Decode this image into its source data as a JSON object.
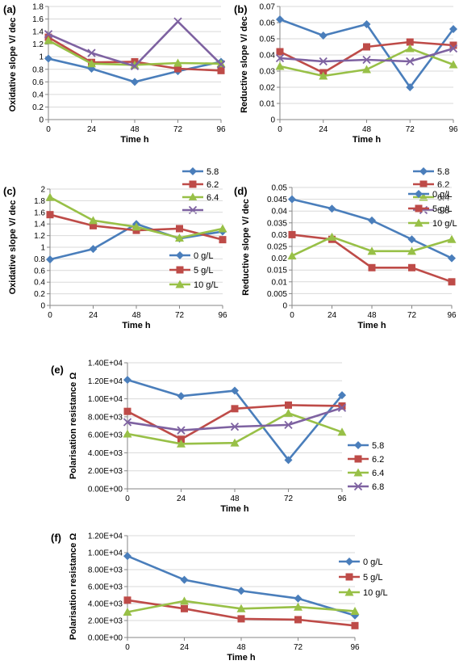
{
  "colors": {
    "blue": "#4a7ebb",
    "red": "#be4b48",
    "green": "#98c047",
    "purple": "#7e62a1",
    "grid": "#d9d9d9",
    "axis": "#868686"
  },
  "chart_data": [
    {
      "id": "a",
      "panel_label": "(a)",
      "type": "line",
      "ylabel": "Oxidative slope V/ dec",
      "xlabel": "Time h",
      "ylim": [
        0,
        1.8
      ],
      "yticks": [
        0,
        0.2,
        0.4,
        0.6,
        0.8,
        1,
        1.2,
        1.4,
        1.6,
        1.8
      ],
      "x": [
        0,
        24,
        48,
        72,
        96
      ],
      "legend_position": "right",
      "series": [
        {
          "name": "5.8",
          "color": "#4a7ebb",
          "marker": "diamond",
          "values": [
            0.97,
            0.81,
            0.6,
            0.77,
            0.92
          ]
        },
        {
          "name": "6.2",
          "color": "#be4b48",
          "marker": "square",
          "values": [
            1.31,
            0.91,
            0.92,
            0.81,
            0.78
          ]
        },
        {
          "name": "6.4",
          "color": "#98c047",
          "marker": "triangle",
          "values": [
            1.26,
            0.89,
            0.87,
            0.9,
            0.89
          ]
        },
        {
          "name": "",
          "color": "#7e62a1",
          "marker": "x",
          "values": [
            1.36,
            1.06,
            0.85,
            1.56,
            0.88
          ]
        }
      ]
    },
    {
      "id": "b",
      "panel_label": "(b)",
      "type": "line",
      "ylabel": "Reductive slope V/ dec",
      "xlabel": "Time h",
      "ylim": [
        0,
        0.07
      ],
      "yticks": [
        0,
        0.01,
        0.02,
        0.03,
        0.04,
        0.05,
        0.06,
        0.07
      ],
      "x": [
        0,
        24,
        48,
        72,
        96
      ],
      "legend_position": "right",
      "series": [
        {
          "name": "5.8",
          "color": "#4a7ebb",
          "marker": "diamond",
          "values": [
            0.062,
            0.052,
            0.059,
            0.02,
            0.056
          ]
        },
        {
          "name": "6.2",
          "color": "#be4b48",
          "marker": "square",
          "values": [
            0.042,
            0.029,
            0.045,
            0.048,
            0.046
          ]
        },
        {
          "name": "6.4",
          "color": "#98c047",
          "marker": "triangle",
          "values": [
            0.033,
            0.027,
            0.031,
            0.044,
            0.034
          ]
        },
        {
          "name": "6.8",
          "color": "#7e62a1",
          "marker": "x",
          "values": [
            0.038,
            0.036,
            0.037,
            0.036,
            0.044
          ]
        }
      ]
    },
    {
      "id": "c",
      "panel_label": "(c)",
      "type": "line",
      "ylabel": "Oxidative slope V/ dec",
      "xlabel": "Time h",
      "ylim": [
        0,
        2
      ],
      "yticks": [
        0,
        0.2,
        0.4,
        0.6,
        0.8,
        1,
        1.2,
        1.4,
        1.6,
        1.8,
        2
      ],
      "x": [
        0,
        24,
        48,
        72,
        96
      ],
      "legend_position": "bottom-right",
      "series": [
        {
          "name": "0 g/L",
          "color": "#4a7ebb",
          "marker": "diamond",
          "values": [
            0.79,
            0.97,
            1.4,
            1.15,
            1.27
          ]
        },
        {
          "name": "5 g/L",
          "color": "#be4b48",
          "marker": "square",
          "values": [
            1.56,
            1.37,
            1.29,
            1.32,
            1.13
          ]
        },
        {
          "name": "10 g/L",
          "color": "#98c047",
          "marker": "triangle",
          "values": [
            1.86,
            1.46,
            1.35,
            1.16,
            1.32
          ]
        }
      ]
    },
    {
      "id": "d",
      "panel_label": "(d)",
      "type": "line",
      "ylabel": "Reductive slope V/ dec",
      "xlabel": "Time h",
      "ylim": [
        0,
        0.05
      ],
      "yticks": [
        0,
        0.005,
        0.01,
        0.015,
        0.02,
        0.025,
        0.03,
        0.035,
        0.04,
        0.045,
        0.05
      ],
      "x": [
        0,
        24,
        48,
        72,
        96
      ],
      "legend_position": "top-right",
      "series": [
        {
          "name": "0 g/L",
          "color": "#4a7ebb",
          "marker": "diamond",
          "values": [
            0.045,
            0.041,
            0.036,
            0.028,
            0.02
          ]
        },
        {
          "name": "5 g/L",
          "color": "#be4b48",
          "marker": "square",
          "values": [
            0.03,
            0.028,
            0.016,
            0.016,
            0.01
          ]
        },
        {
          "name": "10 g/L",
          "color": "#98c047",
          "marker": "triangle",
          "values": [
            0.021,
            0.029,
            0.023,
            0.023,
            0.028
          ]
        }
      ]
    },
    {
      "id": "e",
      "panel_label": "(e)",
      "type": "line",
      "ylabel": "Polarisation resistance Ω",
      "xlabel": "Time h",
      "ylim": [
        0,
        14000
      ],
      "yticks": [
        0,
        2000,
        4000,
        6000,
        8000,
        10000,
        12000,
        14000
      ],
      "x": [
        0,
        24,
        48,
        72,
        96
      ],
      "legend_position": "right",
      "series": [
        {
          "name": "5.8",
          "color": "#4a7ebb",
          "marker": "diamond",
          "values": [
            12100,
            10300,
            10900,
            3200,
            10400
          ]
        },
        {
          "name": "6.2",
          "color": "#be4b48",
          "marker": "square",
          "values": [
            8600,
            5500,
            8900,
            9300,
            9200
          ]
        },
        {
          "name": "6.4",
          "color": "#98c047",
          "marker": "triangle",
          "values": [
            6100,
            5000,
            5100,
            8400,
            6300
          ]
        },
        {
          "name": "6.8",
          "color": "#7e62a1",
          "marker": "x",
          "values": [
            7400,
            6500,
            6900,
            7100,
            9000
          ]
        }
      ]
    },
    {
      "id": "f",
      "panel_label": "(f)",
      "type": "line",
      "ylabel": "Polarisation resistance Ω",
      "xlabel": "Time h",
      "ylim": [
        0,
        12000
      ],
      "yticks": [
        0,
        2000,
        4000,
        6000,
        8000,
        10000,
        12000
      ],
      "x": [
        0,
        24,
        48,
        72,
        96
      ],
      "legend_position": "right",
      "series": [
        {
          "name": "0 g/L",
          "color": "#4a7ebb",
          "marker": "diamond",
          "values": [
            9600,
            6800,
            5500,
            4600,
            2600
          ]
        },
        {
          "name": "5 g/L",
          "color": "#be4b48",
          "marker": "square",
          "values": [
            4400,
            3400,
            2200,
            2100,
            1400
          ]
        },
        {
          "name": "10 g/L",
          "color": "#98c047",
          "marker": "triangle",
          "values": [
            3000,
            4300,
            3400,
            3600,
            3100
          ]
        }
      ]
    }
  ]
}
